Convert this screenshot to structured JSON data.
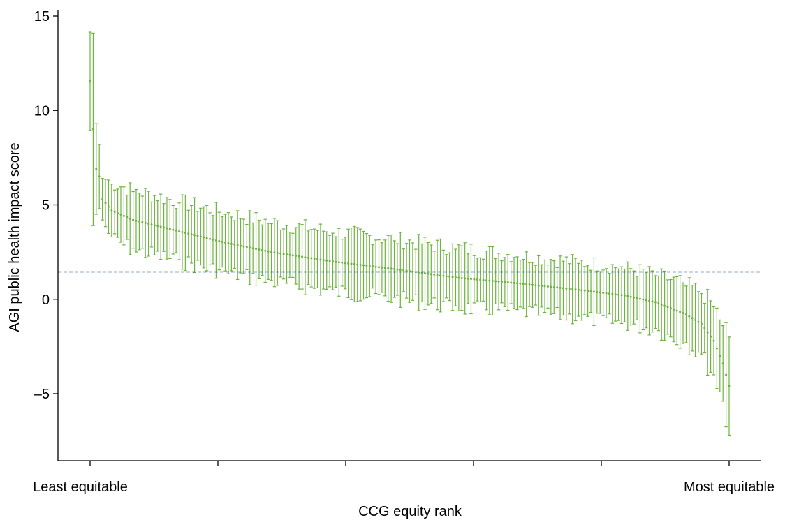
{
  "chart_data": {
    "type": "scatter",
    "title": "",
    "xlabel": "CCG equity rank",
    "ylabel": "AGI public health impact score",
    "ylim": [
      -8.5,
      15.5
    ],
    "y_ticks": [
      15,
      10,
      5,
      0,
      -5
    ],
    "y_tick_labels": [
      "15",
      "10",
      "5",
      "0",
      "–5"
    ],
    "x_tick_labels": [
      "Least equitable",
      "Most equitable"
    ],
    "x_ticks_count": 6,
    "grid": false,
    "legend": "none",
    "colors": {
      "series": "#6db33f",
      "reference": "#2a5f9e",
      "axis": "#000000"
    },
    "reference_line": {
      "y": 1.45,
      "style": "dashed"
    },
    "series": [
      {
        "count": 209,
        "anchors": [
          {
            "rank": 1,
            "value": 11.55,
            "half_ci": 2.6
          },
          {
            "rank": 2,
            "value": 9.0,
            "half_ci": 5.1
          },
          {
            "rank": 3,
            "value": 6.9,
            "half_ci": 2.4
          },
          {
            "rank": 4,
            "value": 6.5,
            "half_ci": 1.7
          },
          {
            "rank": 5,
            "value": 5.3,
            "half_ci": 1.1
          },
          {
            "rank": 8,
            "value": 4.7,
            "half_ci": 1.4
          },
          {
            "rank": 15,
            "value": 4.2,
            "half_ci": 1.5
          },
          {
            "rank": 30,
            "value": 3.6,
            "half_ci": 1.5
          },
          {
            "rank": 45,
            "value": 3.0,
            "half_ci": 1.5
          },
          {
            "rank": 60,
            "value": 2.5,
            "half_ci": 1.5
          },
          {
            "rank": 80,
            "value": 2.0,
            "half_ci": 1.5
          },
          {
            "rank": 100,
            "value": 1.6,
            "half_ci": 1.5
          },
          {
            "rank": 120,
            "value": 1.15,
            "half_ci": 1.5
          },
          {
            "rank": 140,
            "value": 0.85,
            "half_ci": 1.4
          },
          {
            "rank": 160,
            "value": 0.5,
            "half_ci": 1.4
          },
          {
            "rank": 175,
            "value": 0.2,
            "half_ci": 1.4
          },
          {
            "rank": 185,
            "value": -0.15,
            "half_ci": 1.4
          },
          {
            "rank": 195,
            "value": -0.8,
            "half_ci": 1.5
          },
          {
            "rank": 200,
            "value": -1.3,
            "half_ci": 1.6
          },
          {
            "rank": 204,
            "value": -2.2,
            "half_ci": 1.8
          },
          {
            "rank": 207,
            "value": -3.4,
            "half_ci": 2.0
          },
          {
            "rank": 209,
            "value": -4.6,
            "half_ci": 2.6
          }
        ]
      }
    ]
  }
}
